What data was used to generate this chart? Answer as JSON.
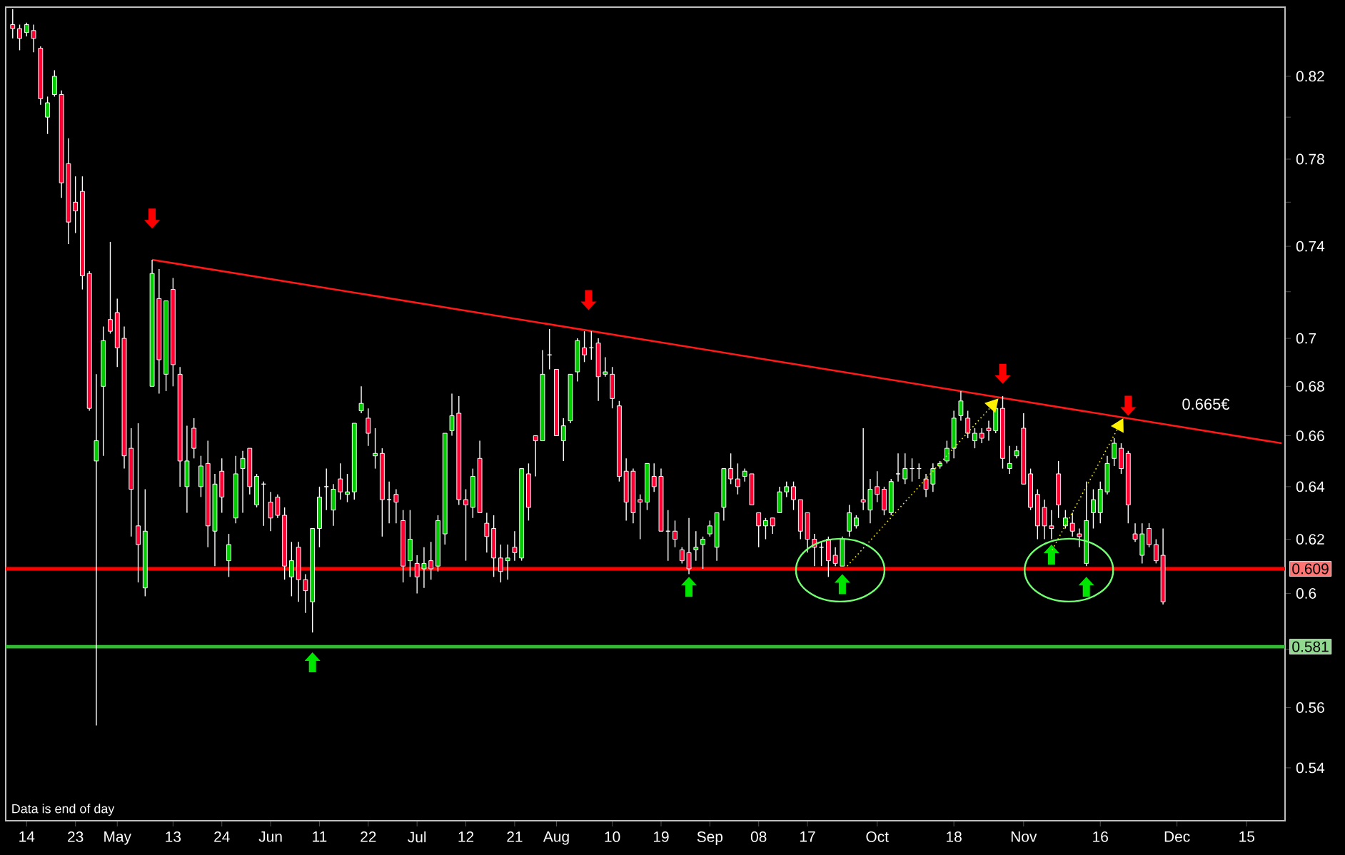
{
  "chart_data": {
    "type": "candlestick",
    "log": true,
    "categories": [
      null,
      null,
      "14",
      null,
      null,
      null,
      null,
      null,
      null,
      "23",
      null,
      null,
      null,
      null,
      null,
      "May",
      null,
      null,
      null,
      null,
      null,
      null,
      null,
      "13",
      null,
      null,
      null,
      null,
      null,
      null,
      "24",
      null,
      null,
      null,
      null,
      null,
      null,
      "Jun",
      null,
      null,
      null,
      null,
      null,
      null,
      "11",
      null,
      null,
      null,
      null,
      null,
      null,
      "22",
      null,
      null,
      null,
      null,
      null,
      null,
      "Jul",
      null,
      null,
      null,
      null,
      null,
      null,
      "12",
      null,
      null,
      null,
      null,
      null,
      null,
      "21",
      null,
      null,
      null,
      null,
      null,
      "Aug",
      null,
      null,
      null,
      null,
      null,
      null,
      null,
      "10",
      null,
      null,
      null,
      null,
      null,
      null,
      "19",
      null,
      null,
      null,
      null,
      null,
      null,
      "Sep",
      null,
      null,
      null,
      null,
      null,
      null,
      "08",
      null,
      null,
      null,
      null,
      null,
      null,
      "17",
      null,
      null,
      null,
      null,
      null,
      null,
      null,
      null,
      null,
      "Oct",
      null,
      null,
      null,
      null,
      null,
      null,
      null,
      null,
      null,
      null,
      "18",
      null,
      null,
      null,
      null,
      null,
      null,
      null,
      null,
      null,
      "Nov",
      null,
      null,
      null,
      null,
      null,
      null,
      null,
      null,
      null,
      null,
      "16",
      null,
      null,
      null,
      null,
      null,
      null,
      null,
      null,
      null,
      null,
      "Dec",
      null,
      null,
      null,
      null,
      null,
      null,
      null,
      null,
      null,
      "15",
      null,
      null,
      null,
      null,
      null
    ],
    "ohlc": [
      [
        0.846,
        0.854,
        0.839,
        0.844
      ],
      [
        0.844,
        0.846,
        0.833,
        0.839
      ],
      [
        0.842,
        0.847,
        0.84,
        0.846
      ],
      [
        0.843,
        0.846,
        0.832,
        0.839
      ],
      [
        0.834,
        0.835,
        0.806,
        0.809
      ],
      [
        0.8,
        0.81,
        0.792,
        0.807
      ],
      [
        0.811,
        0.823,
        0.81,
        0.82
      ],
      [
        0.811,
        0.813,
        0.762,
        0.769
      ],
      [
        0.778,
        0.79,
        0.741,
        0.751
      ],
      [
        0.76,
        0.772,
        0.746,
        0.756
      ],
      [
        0.765,
        0.772,
        0.721,
        0.727
      ],
      [
        0.728,
        0.729,
        0.67,
        0.671
      ],
      [
        0.65,
        0.685,
        0.554,
        0.658
      ],
      [
        0.68,
        0.705,
        0.652,
        0.699
      ],
      [
        0.708,
        0.742,
        0.702,
        0.703
      ],
      [
        0.711,
        0.717,
        0.688,
        0.696
      ],
      [
        0.7,
        0.705,
        0.647,
        0.652
      ],
      [
        0.655,
        0.663,
        0.621,
        0.639
      ],
      [
        0.625,
        0.665,
        0.604,
        0.618
      ],
      [
        0.602,
        0.639,
        0.599,
        0.623
      ],
      [
        0.68,
        0.734,
        0.68,
        0.728
      ],
      [
        0.717,
        0.73,
        0.677,
        0.691
      ],
      [
        0.685,
        0.716,
        0.678,
        0.716
      ],
      [
        0.721,
        0.726,
        0.68,
        0.689
      ],
      [
        0.685,
        0.688,
        0.64,
        0.65
      ],
      [
        0.64,
        0.664,
        0.63,
        0.65
      ],
      [
        0.663,
        0.667,
        0.651,
        0.655
      ],
      [
        0.64,
        0.652,
        0.636,
        0.648
      ],
      [
        0.649,
        0.658,
        0.617,
        0.625
      ],
      [
        0.623,
        0.645,
        0.61,
        0.641
      ],
      [
        0.646,
        0.651,
        0.63,
        0.636
      ],
      [
        0.612,
        0.622,
        0.606,
        0.618
      ],
      [
        0.628,
        0.652,
        0.626,
        0.645
      ],
      [
        0.647,
        0.654,
        0.63,
        0.651
      ],
      [
        0.655,
        0.655,
        0.637,
        0.64
      ],
      [
        0.633,
        0.645,
        0.632,
        0.644
      ],
      [
        0.641,
        0.642,
        0.625,
        0.641
      ],
      [
        0.634,
        0.638,
        0.623,
        0.628
      ],
      [
        0.636,
        0.637,
        0.628,
        0.629
      ],
      [
        0.629,
        0.632,
        0.605,
        0.61
      ],
      [
        0.606,
        0.619,
        0.599,
        0.612
      ],
      [
        0.617,
        0.619,
        0.597,
        0.605
      ],
      [
        0.605,
        0.607,
        0.593,
        0.601
      ],
      [
        0.597,
        0.624,
        0.586,
        0.624
      ],
      [
        0.624,
        0.64,
        0.617,
        0.636
      ],
      [
        0.64,
        0.647,
        0.631,
        0.64
      ],
      [
        0.631,
        0.641,
        0.625,
        0.639
      ],
      [
        0.643,
        0.649,
        0.635,
        0.638
      ],
      [
        0.637,
        0.645,
        0.634,
        0.638
      ],
      [
        0.638,
        0.665,
        0.635,
        0.665
      ],
      [
        0.67,
        0.68,
        0.669,
        0.673
      ],
      [
        0.667,
        0.671,
        0.656,
        0.661
      ],
      [
        0.652,
        0.663,
        0.647,
        0.653
      ],
      [
        0.653,
        0.655,
        0.621,
        0.635
      ],
      [
        0.635,
        0.642,
        0.626,
        0.635
      ],
      [
        0.637,
        0.639,
        0.626,
        0.634
      ],
      [
        0.627,
        0.631,
        0.604,
        0.61
      ],
      [
        0.612,
        0.631,
        0.606,
        0.62
      ],
      [
        0.611,
        0.614,
        0.6,
        0.606
      ],
      [
        0.609,
        0.617,
        0.602,
        0.611
      ],
      [
        0.612,
        0.619,
        0.605,
        0.609
      ],
      [
        0.61,
        0.629,
        0.608,
        0.627
      ],
      [
        0.622,
        0.661,
        0.618,
        0.661
      ],
      [
        0.662,
        0.677,
        0.66,
        0.668
      ],
      [
        0.669,
        0.676,
        0.633,
        0.635
      ],
      [
        0.635,
        0.639,
        0.612,
        0.633
      ],
      [
        0.632,
        0.647,
        0.628,
        0.644
      ],
      [
        0.651,
        0.658,
        0.63,
        0.63
      ],
      [
        0.626,
        0.63,
        0.615,
        0.621
      ],
      [
        0.624,
        0.629,
        0.606,
        0.613
      ],
      [
        0.613,
        0.618,
        0.604,
        0.608
      ],
      [
        0.612,
        0.618,
        0.605,
        0.613
      ],
      [
        0.617,
        0.623,
        0.612,
        0.615
      ],
      [
        0.613,
        0.647,
        0.612,
        0.647
      ],
      [
        0.645,
        0.649,
        0.627,
        0.632
      ],
      [
        0.66,
        0.66,
        0.644,
        0.658
      ],
      [
        0.658,
        0.695,
        0.658,
        0.685
      ],
      [
        0.693,
        0.704,
        0.687,
        0.693
      ],
      [
        0.687,
        0.687,
        0.66,
        0.66
      ],
      [
        0.658,
        0.667,
        0.65,
        0.664
      ],
      [
        0.666,
        0.685,
        0.665,
        0.685
      ],
      [
        0.686,
        0.7,
        0.682,
        0.699
      ],
      [
        0.696,
        0.703,
        0.69,
        0.693
      ],
      [
        0.696,
        0.703,
        0.691,
        0.696
      ],
      [
        0.698,
        0.7,
        0.674,
        0.684
      ],
      [
        0.685,
        0.692,
        0.684,
        0.686
      ],
      [
        0.685,
        0.688,
        0.671,
        0.675
      ],
      [
        0.672,
        0.674,
        0.642,
        0.644
      ],
      [
        0.646,
        0.651,
        0.627,
        0.634
      ],
      [
        0.646,
        0.647,
        0.626,
        0.63
      ],
      [
        0.635,
        0.637,
        0.62,
        0.634
      ],
      [
        0.634,
        0.649,
        0.631,
        0.649
      ],
      [
        0.644,
        0.649,
        0.638,
        0.64
      ],
      [
        0.644,
        0.647,
        0.623,
        0.623
      ],
      [
        0.623,
        0.631,
        0.612,
        0.623
      ],
      [
        0.623,
        0.627,
        0.617,
        0.62
      ],
      [
        0.616,
        0.617,
        0.611,
        0.612
      ],
      [
        0.615,
        0.628,
        0.607,
        0.609
      ],
      [
        0.616,
        0.623,
        0.612,
        0.617
      ],
      [
        0.618,
        0.621,
        0.609,
        0.62
      ],
      [
        0.622,
        0.627,
        0.621,
        0.625
      ],
      [
        0.617,
        0.63,
        0.612,
        0.63
      ],
      [
        0.632,
        0.647,
        0.627,
        0.647
      ],
      [
        0.647,
        0.653,
        0.641,
        0.643
      ],
      [
        0.643,
        0.649,
        0.637,
        0.64
      ],
      [
        0.644,
        0.647,
        0.642,
        0.646
      ],
      [
        0.645,
        0.645,
        0.633,
        0.633
      ],
      [
        0.63,
        0.63,
        0.617,
        0.625
      ],
      [
        0.625,
        0.628,
        0.62,
        0.627
      ],
      [
        0.628,
        0.628,
        0.622,
        0.625
      ],
      [
        0.63,
        0.64,
        0.63,
        0.638
      ],
      [
        0.638,
        0.642,
        0.636,
        0.64
      ],
      [
        0.64,
        0.642,
        0.631,
        0.635
      ],
      [
        0.635,
        0.635,
        0.62,
        0.623
      ],
      [
        0.63,
        0.63,
        0.615,
        0.62
      ],
      [
        0.62,
        0.622,
        0.61,
        0.617
      ],
      [
        0.617,
        0.619,
        0.61,
        0.617
      ],
      [
        0.62,
        0.621,
        0.606,
        0.612
      ],
      [
        0.614,
        0.617,
        0.61,
        0.611
      ],
      [
        0.61,
        0.621,
        0.61,
        0.62
      ],
      [
        0.623,
        0.633,
        0.621,
        0.63
      ],
      [
        0.625,
        0.629,
        0.624,
        0.628
      ],
      [
        0.635,
        0.663,
        0.631,
        0.634
      ],
      [
        0.631,
        0.643,
        0.626,
        0.639
      ],
      [
        0.64,
        0.646,
        0.634,
        0.637
      ],
      [
        0.639,
        0.64,
        0.629,
        0.631
      ],
      [
        0.63,
        0.643,
        0.629,
        0.642
      ],
      [
        0.645,
        0.653,
        0.642,
        0.645
      ],
      [
        0.643,
        0.653,
        0.641,
        0.647
      ],
      [
        0.647,
        0.651,
        0.642,
        0.647
      ],
      [
        0.647,
        0.649,
        0.643,
        0.647
      ],
      [
        0.643,
        0.645,
        0.636,
        0.639
      ],
      [
        0.641,
        0.649,
        0.638,
        0.647
      ],
      [
        0.648,
        0.65,
        0.647,
        0.649
      ],
      [
        0.65,
        0.658,
        0.649,
        0.655
      ],
      [
        0.655,
        0.67,
        0.651,
        0.667
      ],
      [
        0.668,
        0.678,
        0.666,
        0.674
      ],
      [
        0.667,
        0.67,
        0.659,
        0.661
      ],
      [
        0.658,
        0.663,
        0.655,
        0.661
      ],
      [
        0.661,
        0.663,
        0.657,
        0.659
      ],
      [
        0.663,
        0.666,
        0.658,
        0.662
      ],
      [
        0.662,
        0.672,
        0.661,
        0.671
      ],
      [
        0.671,
        0.676,
        0.647,
        0.651
      ],
      [
        0.647,
        0.656,
        0.645,
        0.649
      ],
      [
        0.652,
        0.656,
        0.651,
        0.654
      ],
      [
        0.663,
        0.669,
        0.641,
        0.641
      ],
      [
        0.645,
        0.647,
        0.631,
        0.632
      ],
      [
        0.637,
        0.639,
        0.62,
        0.625
      ],
      [
        0.632,
        0.635,
        0.62,
        0.625
      ],
      [
        0.625,
        0.631,
        0.62,
        0.624
      ],
      [
        0.645,
        0.65,
        0.628,
        0.633
      ],
      [
        0.625,
        0.631,
        0.624,
        0.628
      ],
      [
        0.626,
        0.63,
        0.621,
        0.623
      ],
      [
        0.622,
        0.624,
        0.617,
        0.621
      ],
      [
        0.611,
        0.642,
        0.61,
        0.627
      ],
      [
        0.63,
        0.639,
        0.624,
        0.635
      ],
      [
        0.63,
        0.642,
        0.626,
        0.639
      ],
      [
        0.638,
        0.652,
        0.637,
        0.649
      ],
      [
        0.651,
        0.659,
        0.648,
        0.657
      ],
      [
        0.655,
        0.657,
        0.645,
        0.647
      ],
      [
        0.653,
        0.654,
        0.626,
        0.633
      ],
      [
        0.622,
        0.626,
        0.619,
        0.62
      ],
      [
        0.614,
        0.626,
        0.611,
        0.622
      ],
      [
        0.624,
        0.626,
        0.617,
        0.618
      ],
      [
        0.618,
        0.62,
        0.611,
        0.612
      ],
      [
        0.614,
        0.624,
        0.596,
        0.597
      ],
      null,
      null,
      null,
      null,
      null,
      null,
      null,
      null,
      null,
      null,
      null,
      null,
      null,
      null,
      null,
      null,
      null
    ],
    "series": [
      {
        "type": "line",
        "color": "#ff1a1a",
        "values": [
          null,
          null,
          null,
          null,
          null,
          null,
          null,
          null,
          null,
          null,
          null,
          null,
          null,
          null,
          null,
          null,
          null,
          null,
          null,
          null,
          0.734,
          null,
          null,
          null,
          null,
          null,
          null,
          null,
          null,
          null,
          null,
          null,
          null,
          null,
          null,
          null,
          null,
          null,
          null,
          null,
          null,
          null,
          null,
          null,
          null,
          null,
          null,
          null,
          null,
          null,
          null,
          null,
          null,
          null,
          null,
          null,
          null,
          null,
          null,
          null,
          null,
          null,
          null,
          null,
          null,
          null,
          null,
          null,
          null,
          null,
          null,
          null,
          null,
          null,
          null,
          null,
          null,
          null,
          null,
          null,
          null,
          null,
          null,
          null,
          null,
          null,
          null,
          null,
          null,
          null,
          null,
          null,
          null,
          null,
          null,
          null,
          null,
          null,
          null,
          null,
          null,
          null,
          null,
          null,
          null,
          null,
          null,
          null,
          null,
          null,
          null,
          null,
          null,
          null,
          null,
          null,
          null,
          null,
          null,
          null,
          null,
          null,
          null,
          null,
          null,
          null,
          null,
          null,
          null,
          null,
          null,
          null,
          null,
          null,
          null,
          null,
          null,
          null,
          null,
          null,
          null,
          null,
          null,
          null,
          null,
          null,
          null,
          null,
          null,
          null,
          null,
          null,
          null,
          null,
          null,
          null,
          null,
          null,
          null,
          null,
          null,
          null,
          null,
          null,
          null,
          null,
          null,
          null,
          null,
          null,
          null,
          null,
          null,
          null,
          null,
          null,
          null,
          null,
          null,
          null,
          null,
          null,
          0.657
        ]
      }
    ],
    "ylim": [
      0.523,
      0.855
    ],
    "yticks": [
      0.54,
      0.56,
      {
        "value": 0.58,
        "label": null
      },
      0.6,
      0.62,
      0.64,
      0.66,
      0.68,
      0.7,
      {
        "value": 0.72,
        "label": null
      },
      0.74,
      {
        "value": 0.76,
        "label": null
      },
      0.78,
      {
        "value": 0.8,
        "label": null
      },
      0.82
    ],
    "ref_lines": [
      {
        "axis": "y",
        "value": 0.609,
        "label": "0.609",
        "color": "#ff0000"
      },
      {
        "axis": "y",
        "value": 0.581,
        "label": "0.581",
        "color": "#33bb33"
      }
    ],
    "annotations": [
      "0.665€",
      "Data is end of day"
    ]
  }
}
